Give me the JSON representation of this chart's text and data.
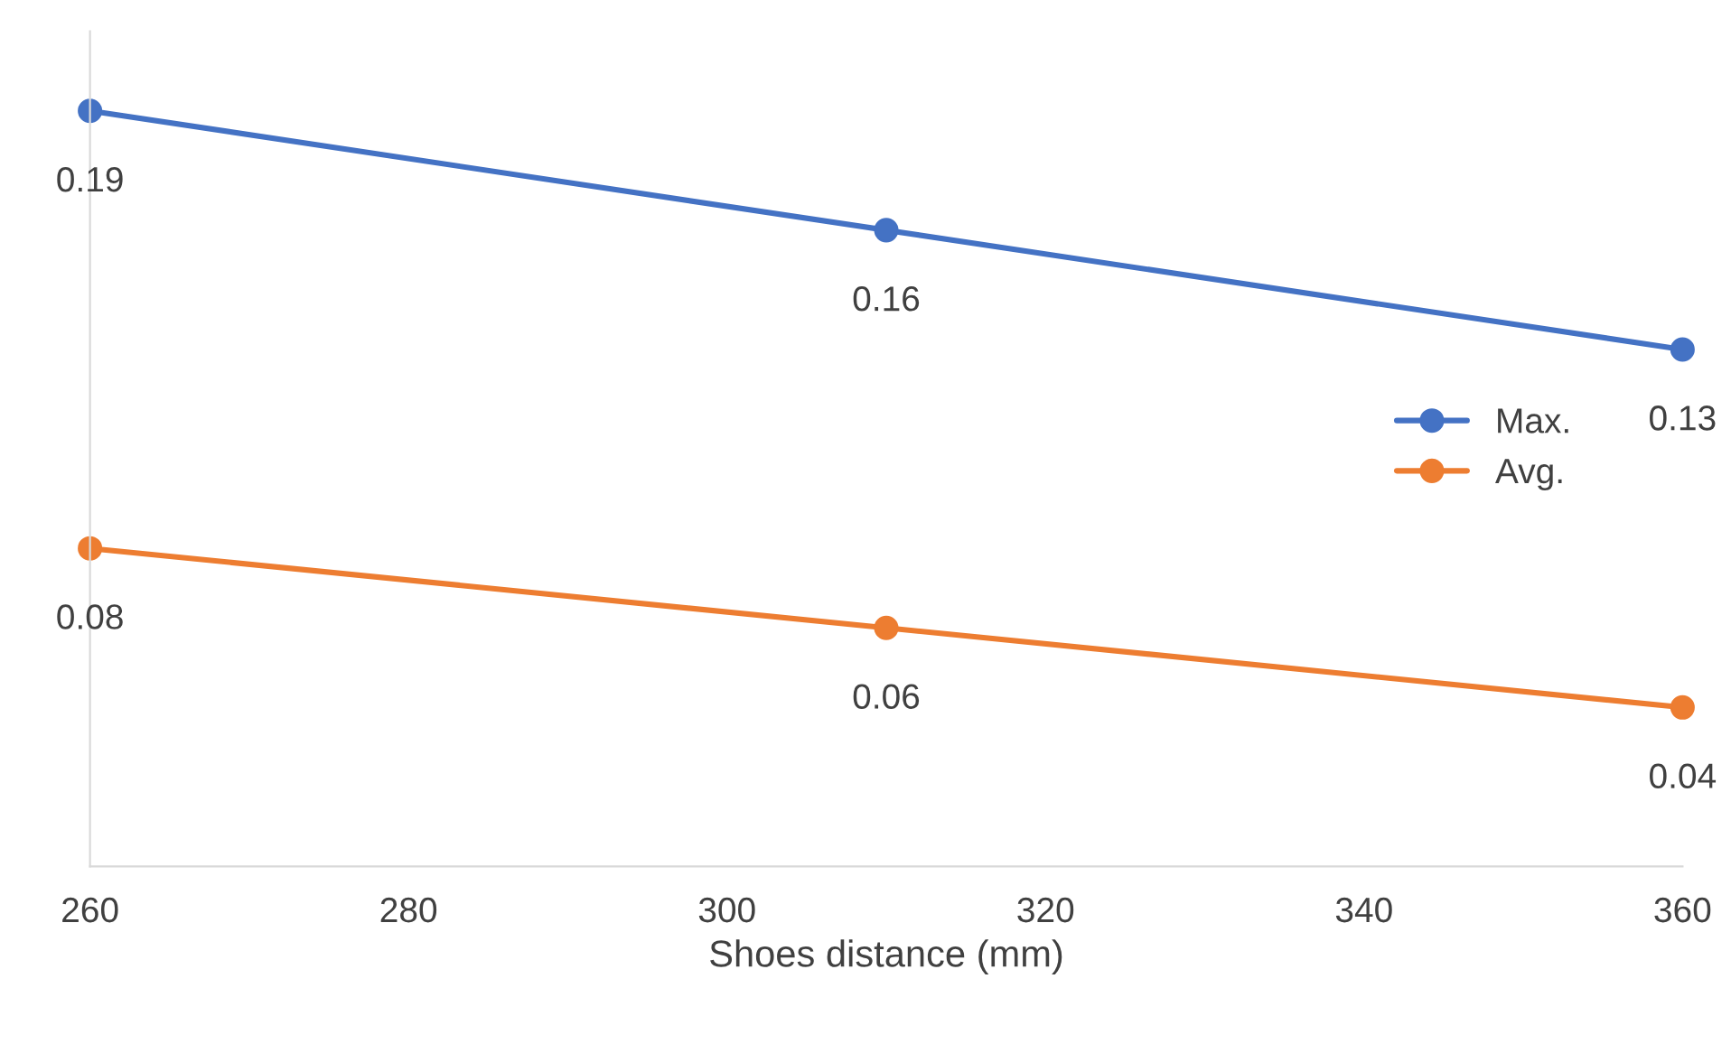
{
  "chart_data": {
    "type": "line",
    "xlabel": "Shoes distance (mm)",
    "x": [
      260,
      310,
      360
    ],
    "series": [
      {
        "name": "Max.",
        "color": "#4472c4",
        "values": [
          0.19,
          0.16,
          0.13
        ]
      },
      {
        "name": "Avg.",
        "color": "#ed7d31",
        "values": [
          0.08,
          0.06,
          0.04
        ]
      }
    ],
    "xlim": [
      260,
      360
    ],
    "xticks": [
      260,
      280,
      300,
      320,
      340,
      360
    ],
    "ylim": [
      0,
      0.21
    ],
    "tick_labels": "x",
    "data_labels": true,
    "marker": "circle",
    "line_style": "solid",
    "legend": "right",
    "grid": false
  }
}
